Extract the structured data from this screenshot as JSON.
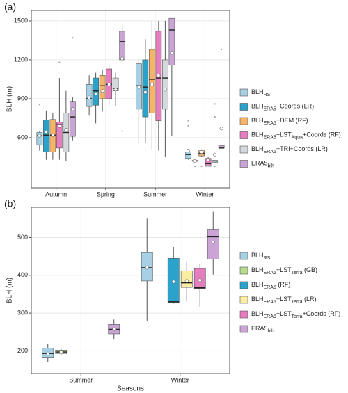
{
  "chart_data": [
    {
      "type": "box",
      "label": "(a)",
      "ylabel": "BLH (m)",
      "categories": [
        "Autumn",
        "Spring",
        "Summer",
        "Winter"
      ],
      "ylim": [
        214,
        1580
      ],
      "yticks": [
        600,
        900,
        1200,
        1500
      ],
      "grid": true,
      "series": [
        {
          "name": [
            "BLH",
            "RS"
          ],
          "color": "#a8d0e4",
          "boxes": [
            {
              "low": 500,
              "q1": 545,
              "median": 615,
              "q3": 640,
              "high": 650,
              "mean": 615,
              "outliers": [
                855
              ]
            },
            {
              "low": 770,
              "q1": 840,
              "median": 900,
              "q3": 1010,
              "high": 1080,
              "mean": 910,
              "outliers": []
            },
            {
              "low": 560,
              "q1": 820,
              "median": 1000,
              "q3": 1170,
              "high": 1200,
              "mean": 990,
              "outliers": []
            },
            {
              "low": 430,
              "q1": 440,
              "median": 470,
              "q3": 490,
              "high": 510,
              "mean": 500,
              "outliers": [
                730,
                690
              ]
            }
          ]
        },
        {
          "name": [
            "BLH",
            "ERA5",
            "+Coords (LR)"
          ],
          "color": "#2aa2c9",
          "boxes": [
            {
              "low": 430,
              "q1": 490,
              "median": 620,
              "q3": 735,
              "high": 810,
              "mean": 645,
              "outliers": []
            },
            {
              "low": 710,
              "q1": 850,
              "median": 960,
              "q3": 1060,
              "high": 1100,
              "mean": 940,
              "outliers": []
            },
            {
              "low": 560,
              "q1": 760,
              "median": 990,
              "q3": 1200,
              "high": 1360,
              "mean": 950,
              "outliers": []
            },
            {
              "low": 420,
              "q1": 420,
              "median": 420,
              "q3": 425,
              "high": 425,
              "mean": 420,
              "outliers": [
                380
              ]
            }
          ]
        },
        {
          "name": [
            "BLH",
            "ERA5",
            "+DEM (RF)"
          ],
          "color": "#f8b36b",
          "boxes": [
            {
              "low": 430,
              "q1": 490,
              "median": 620,
              "q3": 740,
              "high": 790,
              "mean": 620,
              "outliers": []
            },
            {
              "low": 800,
              "q1": 900,
              "median": 1000,
              "q3": 1080,
              "high": 1120,
              "mean": 960,
              "outliers": []
            },
            {
              "low": 510,
              "q1": 790,
              "median": 1050,
              "q3": 1280,
              "high": 1500,
              "mean": 1010,
              "outliers": []
            },
            {
              "low": 450,
              "q1": 460,
              "median": 480,
              "q3": 500,
              "high": 510,
              "mean": 490,
              "outliers": [
                380
              ]
            }
          ]
        },
        {
          "name": [
            "BLH",
            "ERA5",
            "+LST",
            "Aqua",
            "+Coords (RF)"
          ],
          "color": "#e67dbf",
          "boxes": [
            {
              "low": 430,
              "q1": 520,
              "median": 700,
              "q3": 720,
              "high": 1060,
              "mean": 690,
              "outliers": [
                1180
              ]
            },
            {
              "low": 850,
              "q1": 900,
              "median": 1010,
              "q3": 1130,
              "high": 1160,
              "mean": 1010,
              "outliers": []
            },
            {
              "low": 500,
              "q1": 730,
              "median": 1060,
              "q3": 1420,
              "high": 1500,
              "mean": 1080,
              "outliers": []
            },
            {
              "low": 380,
              "q1": 380,
              "median": 400,
              "q3": 440,
              "high": 450,
              "mean": 430,
              "outliers": [
                390
              ]
            }
          ]
        },
        {
          "name": [
            "BLH",
            "ERA5",
            "+TRI+Coords (LR)"
          ],
          "color": "#d4d8dc",
          "boxes": [
            {
              "low": 420,
              "q1": 490,
              "median": 640,
              "q3": 790,
              "high": 960,
              "mean": 660,
              "outliers": []
            },
            {
              "low": 840,
              "q1": 960,
              "median": 980,
              "q3": 1060,
              "high": 1100,
              "mean": 970,
              "outliers": []
            },
            {
              "low": 450,
              "q1": 820,
              "median": 1060,
              "q3": 1200,
              "high": 1500,
              "mean": 970,
              "outliers": []
            },
            {
              "low": 410,
              "q1": 410,
              "median": 420,
              "q3": 425,
              "high": 425,
              "mean": 470,
              "outliers": [
                860,
                760,
                380
              ]
            }
          ]
        },
        {
          "name": [
            "ERA5",
            "blh"
          ],
          "color": "#c9a4d5",
          "boxes": [
            {
              "low": 580,
              "q1": 610,
              "median": 760,
              "q3": 880,
              "high": 910,
              "mean": 820,
              "outliers": [
                1370
              ]
            },
            {
              "low": 1190,
              "q1": 1200,
              "median": 1340,
              "q3": 1420,
              "high": 1470,
              "mean": 1210,
              "outliers": [
                650
              ]
            },
            {
              "low": 610,
              "q1": 1160,
              "median": 1430,
              "q3": 1520,
              "high": 1520,
              "mean": 1250,
              "outliers": []
            },
            {
              "low": 520,
              "q1": 520,
              "median": 520,
              "q3": 540,
              "high": 540,
              "mean": 670,
              "outliers": [
                1280
              ]
            }
          ]
        }
      ]
    },
    {
      "type": "box",
      "label": "(b)",
      "ylabel": "BLH (m)",
      "xlabel": "Seasons",
      "categories": [
        "Summer",
        "Winter"
      ],
      "ylim": [
        140,
        580
      ],
      "yticks": [
        200,
        300,
        400,
        500
      ],
      "grid": true,
      "series": [
        {
          "name": [
            "BLH",
            "RS"
          ],
          "color": "#a8d0e4",
          "boxes": [
            {
              "low": 170,
              "q1": 183,
              "median": 193,
              "q3": 207,
              "high": 218,
              "mean": 193,
              "outliers": []
            },
            {
              "low": 280,
              "q1": 385,
              "median": 420,
              "q3": 460,
              "high": 550,
              "mean": 420,
              "outliers": []
            }
          ]
        },
        {
          "name": [
            "BLH",
            "ERA5",
            "+LST",
            "Terra",
            " (GB)"
          ],
          "color": "#b6dc8c",
          "boxes": [
            {
              "low": 190,
              "q1": 193,
              "median": 197,
              "q3": 202,
              "high": 207,
              "mean": 197,
              "outliers": []
            },
            null
          ]
        },
        {
          "name": [
            "BLH",
            "ERA5",
            " (RF)"
          ],
          "color": "#2aa2c9",
          "boxes": [
            null,
            {
              "low": 325,
              "q1": 328,
              "median": 330,
              "q3": 445,
              "high": 475,
              "mean": 383,
              "outliers": []
            }
          ]
        },
        {
          "name": [
            "BLH",
            "ERA5",
            "+LST",
            "Terra",
            " (LR)"
          ],
          "color": "#fbeea2",
          "boxes": [
            null,
            {
              "low": 330,
              "q1": 368,
              "median": 380,
              "q3": 412,
              "high": 435,
              "mean": 385,
              "outliers": []
            }
          ]
        },
        {
          "name": [
            "BLH",
            "ERA5",
            "+LST",
            "Terra",
            "+Coords (RF)"
          ],
          "color": "#e67dbf",
          "boxes": [
            null,
            {
              "low": 315,
              "q1": 365,
              "median": 367,
              "q3": 418,
              "high": 430,
              "mean": 387,
              "outliers": []
            }
          ]
        },
        {
          "name": [
            "ERA5",
            "blh"
          ],
          "color": "#c9a4d5",
          "boxes": [
            {
              "low": 230,
              "q1": 245,
              "median": 257,
              "q3": 270,
              "high": 283,
              "mean": 257,
              "outliers": []
            },
            {
              "low": 402,
              "q1": 443,
              "median": 502,
              "q3": 522,
              "high": 568,
              "mean": 487,
              "outliers": []
            }
          ]
        }
      ]
    }
  ]
}
